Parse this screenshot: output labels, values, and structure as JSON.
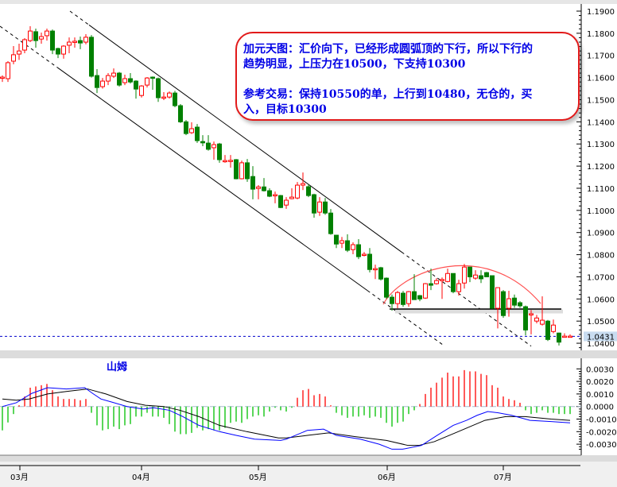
{
  "chart_data": {
    "type": "candlestick",
    "price_axis": {
      "ticks": [
        "1.1900",
        "1.1800",
        "1.1700",
        "1.1600",
        "1.1500",
        "1.1400",
        "1.1300",
        "1.1200",
        "1.1100",
        "1.1000",
        "1.0900",
        "1.0800",
        "1.0700",
        "1.0600",
        "1.0500",
        "1.0400"
      ],
      "ylim": [
        1.04,
        1.19
      ]
    },
    "current_price": "1.0431",
    "x_tick_labels": [
      "03月",
      "04月",
      "05月",
      "06月",
      "07月"
    ],
    "colors": {
      "up": "#ff0000",
      "down": "#008000",
      "macd_line": "#0000ff",
      "signal_line": "#000000",
      "annotation_text": "#0000e6",
      "annotation_border": "#e21a1a",
      "current_price_line": "#0000cc"
    },
    "candles_ohlc": [
      [
        1.16,
        1.161,
        1.158,
        1.1602
      ],
      [
        1.1595,
        1.1674,
        1.158,
        1.1667
      ],
      [
        1.1674,
        1.1742,
        1.166,
        1.1703
      ],
      [
        1.1706,
        1.1753,
        1.168,
        1.172
      ],
      [
        1.1724,
        1.1778,
        1.171,
        1.1771
      ],
      [
        1.1767,
        1.1832,
        1.176,
        1.181
      ],
      [
        1.1807,
        1.1821,
        1.1735,
        1.1767
      ],
      [
        1.1774,
        1.1803,
        1.1753,
        1.1785
      ],
      [
        1.1789,
        1.1821,
        1.1767,
        1.181
      ],
      [
        1.181,
        1.1817,
        1.1706,
        1.1724
      ],
      [
        1.1731,
        1.1735,
        1.1688,
        1.1706
      ],
      [
        1.1706,
        1.1746,
        1.1685,
        1.1742
      ],
      [
        1.1746,
        1.1781,
        1.171,
        1.176
      ],
      [
        1.1762,
        1.1781,
        1.1735,
        1.1764
      ],
      [
        1.1767,
        1.1785,
        1.1728,
        1.1756
      ],
      [
        1.176,
        1.1796,
        1.175,
        1.1782
      ],
      [
        1.1782,
        1.1792,
        1.16,
        1.1606
      ],
      [
        1.1609,
        1.1638,
        1.153,
        1.1555
      ],
      [
        1.1559,
        1.1598,
        1.155,
        1.1584
      ],
      [
        1.1584,
        1.162,
        1.1566,
        1.1609
      ],
      [
        1.1606,
        1.1641,
        1.1598,
        1.162
      ],
      [
        1.162,
        1.1625,
        1.1559,
        1.1566
      ],
      [
        1.1577,
        1.1613,
        1.1566,
        1.1595
      ],
      [
        1.1595,
        1.162,
        1.1573,
        1.158
      ],
      [
        1.1584,
        1.1588,
        1.1505,
        1.1548
      ],
      [
        1.1519,
        1.1566,
        1.151,
        1.1562
      ],
      [
        1.1566,
        1.1602,
        1.1555,
        1.1598
      ],
      [
        1.1602,
        1.1605,
        1.1545,
        1.1598
      ],
      [
        1.1595,
        1.16,
        1.149,
        1.1509
      ],
      [
        1.151,
        1.1534,
        1.1498,
        1.1512
      ],
      [
        1.1512,
        1.1537,
        1.1505,
        1.153
      ],
      [
        1.153,
        1.154,
        1.1466,
        1.1473
      ],
      [
        1.1473,
        1.148,
        1.1395,
        1.14
      ],
      [
        1.14,
        1.1408,
        1.134,
        1.1347
      ],
      [
        1.1351,
        1.1398,
        1.1345,
        1.1369
      ],
      [
        1.1376,
        1.139,
        1.1305,
        1.1315
      ],
      [
        1.1311,
        1.134,
        1.129,
        1.1305
      ],
      [
        1.1304,
        1.134,
        1.127,
        1.1276
      ],
      [
        1.1283,
        1.1311,
        1.1229,
        1.1297
      ],
      [
        1.13,
        1.1305,
        1.1215,
        1.1229
      ],
      [
        1.1222,
        1.125,
        1.1215,
        1.1225
      ],
      [
        1.1222,
        1.125,
        1.1193,
        1.1226
      ],
      [
        1.1229,
        1.1232,
        1.114,
        1.1143
      ],
      [
        1.1143,
        1.1225,
        1.114,
        1.1215
      ],
      [
        1.1215,
        1.1232,
        1.1129,
        1.1143
      ],
      [
        1.1153,
        1.12,
        1.105,
        1.1096
      ],
      [
        1.1099,
        1.1114,
        1.105,
        1.1106
      ],
      [
        1.1106,
        1.1146,
        1.1085,
        1.1089
      ],
      [
        1.1089,
        1.11,
        1.106,
        1.1064
      ],
      [
        1.1069,
        1.1085,
        1.1032,
        1.1071
      ],
      [
        1.1067,
        1.107,
        1.101,
        1.1013
      ],
      [
        1.1024,
        1.106,
        1.1007,
        1.1046
      ],
      [
        1.1053,
        1.11,
        1.105,
        1.106
      ],
      [
        1.1056,
        1.1128,
        1.105,
        1.1114
      ],
      [
        1.1114,
        1.1171,
        1.1092,
        1.1121
      ],
      [
        1.1107,
        1.1118,
        1.106,
        1.1067
      ],
      [
        1.1071,
        1.1075,
        1.0967,
        1.0988
      ],
      [
        1.0992,
        1.106,
        1.0975,
        1.1038
      ],
      [
        1.1038,
        1.1056,
        1.098,
        1.0988
      ],
      [
        1.0988,
        1.1006,
        1.089,
        1.0895
      ],
      [
        1.0888,
        1.089,
        1.083,
        1.0848
      ],
      [
        1.0852,
        1.088,
        1.083,
        1.0863
      ],
      [
        1.0863,
        1.0892,
        1.0812,
        1.082
      ],
      [
        1.0823,
        1.0856,
        1.0802,
        1.0845
      ],
      [
        1.0845,
        1.087,
        1.078,
        1.0791
      ],
      [
        1.08,
        1.0812,
        1.0792,
        1.0802
      ],
      [
        1.0802,
        1.083,
        1.072,
        1.0733
      ],
      [
        1.0735,
        1.0755,
        1.069,
        1.0737
      ],
      [
        1.0741,
        1.0745,
        1.0683,
        1.069
      ],
      [
        1.0694,
        1.0697,
        1.06,
        1.0608
      ],
      [
        1.0608,
        1.062,
        1.0547,
        1.0579
      ],
      [
        1.0579,
        1.0636,
        1.0558,
        1.0629
      ],
      [
        1.0626,
        1.0636,
        1.0565,
        1.0575
      ],
      [
        1.0579,
        1.0636,
        1.0565,
        1.0633
      ],
      [
        1.0633,
        1.0712,
        1.0597,
        1.0597
      ],
      [
        1.0615,
        1.0618,
        1.059,
        1.06
      ],
      [
        1.0604,
        1.0672,
        1.06,
        1.0669
      ],
      [
        1.0669,
        1.0737,
        1.064,
        1.0662
      ],
      [
        1.0669,
        1.0694,
        1.0665,
        1.0683
      ],
      [
        1.0686,
        1.0697,
        1.06,
        1.0688
      ],
      [
        1.0679,
        1.0737,
        1.0675,
        1.0715
      ],
      [
        1.0715,
        1.0716,
        1.0626,
        1.0633
      ],
      [
        1.0633,
        1.0687,
        1.0615,
        1.0669
      ],
      [
        1.0672,
        1.0758,
        1.0647,
        1.0744
      ],
      [
        1.0744,
        1.0745,
        1.0676,
        1.07
      ],
      [
        1.0694,
        1.073,
        1.0687,
        1.0708
      ],
      [
        1.0705,
        1.073,
        1.0672,
        1.0691
      ],
      [
        1.0719,
        1.0722,
        1.07,
        1.07
      ],
      [
        1.0705,
        1.0706,
        1.0555,
        1.0558
      ],
      [
        1.0558,
        1.0652,
        1.0467,
        1.0651
      ],
      [
        1.0633,
        1.064,
        1.0515,
        1.0525
      ],
      [
        1.0558,
        1.0637,
        1.052,
        1.0601
      ],
      [
        1.0604,
        1.062,
        1.056,
        1.0572
      ],
      [
        1.0583,
        1.059,
        1.056,
        1.0569
      ],
      [
        1.0565,
        1.057,
        1.0435,
        1.046
      ],
      [
        1.053,
        1.055,
        1.044,
        1.0533
      ],
      [
        1.05,
        1.0528,
        1.049,
        1.0514
      ],
      [
        1.0486,
        1.0612,
        1.048,
        1.0504
      ],
      [
        1.05,
        1.0505,
        1.041,
        1.0417
      ],
      [
        1.0453,
        1.0507,
        1.0445,
        1.0482
      ],
      [
        1.0446,
        1.0448,
        1.039,
        1.0405
      ],
      [
        1.043,
        1.0445,
        1.0428,
        1.0432
      ],
      [
        1.0431,
        1.044,
        1.0428,
        1.0432
      ]
    ],
    "macd": {
      "title": "山姆",
      "ticks": [
        "0.0030",
        "0.0020",
        "0.0010",
        "0.0000",
        "-0.0010",
        "-0.0020",
        "-0.0030"
      ],
      "ylim": [
        -0.0035,
        0.0035
      ],
      "histogram": [
        -0.0019,
        -0.00127,
        -0.0006,
        0.0001,
        0.0008,
        0.0015,
        0.0016,
        0.0017,
        0.0018,
        0.0013,
        0.0008,
        0.0006,
        0.0006,
        0.0006,
        0.0005,
        0.0006,
        -0.0005,
        -0.0015,
        -0.0019,
        -0.0018,
        -0.0016,
        -0.0018,
        -0.0015,
        -0.0014,
        -0.0008,
        -0.0008,
        -0.0005,
        -0.0008,
        -0.0008,
        -0.0009,
        -0.0014,
        -0.002,
        -0.0022,
        -0.0022,
        -0.0021,
        -0.0017,
        -0.0019,
        -0.0018,
        -0.0019,
        -0.0019,
        -0.0017,
        -0.0013,
        -0.0012,
        -0.0013,
        -0.001,
        -0.0008,
        -0.0007,
        -0.0008,
        -0.0004,
        -0.0001,
        -0.0003,
        -0.0004,
        -0.0001,
        0.0007,
        0.0013,
        0.0014,
        0.0009,
        0.001,
        0.0008,
        0.0001,
        -0.0005,
        -0.0007,
        -0.0009,
        -0.0008,
        -0.0008,
        -0.0007,
        -0.0009,
        -0.0008,
        -0.0009,
        -0.0013,
        -0.0016,
        -0.0013,
        -0.0012,
        -0.0006,
        -0.0003,
        0.0002,
        0.001,
        0.0015,
        0.0019,
        0.0023,
        0.0027,
        0.0024,
        0.0024,
        0.0029,
        0.0028,
        0.0028,
        0.0026,
        0.0025,
        0.0017,
        0.0015,
        0.0008,
        0.0006,
        0.0005,
        0.0003,
        -0.0003,
        -0.0006,
        -0.0005,
        -0.0003,
        -0.0005,
        -0.0005,
        -0.0006,
        -0.0006,
        -0.0006
      ],
      "macd_line": [
        [
          0,
          0
        ],
        [
          2.5,
          0.0003
        ],
        [
          5.3,
          0.00105
        ],
        [
          8.1,
          0.0015
        ],
        [
          11.5,
          0.0014
        ],
        [
          14.8,
          0.0015
        ],
        [
          16.2,
          0.00105
        ],
        [
          17.7,
          0.0006
        ],
        [
          19.6,
          0.00036
        ],
        [
          22.4,
          0
        ],
        [
          25.3,
          -0.0002
        ],
        [
          27.2,
          -0.0001
        ],
        [
          30,
          -0.0003
        ],
        [
          32.4,
          -0.0008
        ],
        [
          35.3,
          -0.0015
        ],
        [
          39,
          -0.002
        ],
        [
          42,
          -0.0023
        ],
        [
          45.3,
          -0.0026
        ],
        [
          50,
          -0.0027
        ],
        [
          51,
          -0.0026
        ],
        [
          54.8,
          -0.0019
        ],
        [
          57.7,
          -0.0018
        ],
        [
          60,
          -0.0023
        ],
        [
          64.3,
          -0.0026
        ],
        [
          67.7,
          -0.003
        ],
        [
          70,
          -0.0034
        ],
        [
          71.9,
          -0.0034
        ],
        [
          75.3,
          -0.0031
        ],
        [
          78.1,
          -0.0023
        ],
        [
          81,
          -0.0015
        ],
        [
          83.4,
          -0.0011
        ],
        [
          85.3,
          -0.0007
        ],
        [
          87.2,
          -0.0004
        ],
        [
          89.1,
          -0.0005
        ],
        [
          91.5,
          -0.0007
        ],
        [
          94.8,
          -0.0011
        ],
        [
          98.6,
          -0.0012
        ],
        [
          102,
          -0.0013
        ]
      ],
      "signal_line": [
        [
          0,
          0.0006
        ],
        [
          2.5,
          0.0005
        ],
        [
          4.8,
          0.0006
        ],
        [
          8.1,
          0.001
        ],
        [
          11.5,
          0.0012
        ],
        [
          15.3,
          0.0014
        ],
        [
          18.6,
          0.001
        ],
        [
          22.4,
          0.0004
        ],
        [
          25.7,
          0.0001
        ],
        [
          29,
          0
        ],
        [
          31.9,
          -0.0003
        ],
        [
          35.3,
          -0.0008
        ],
        [
          39,
          -0.0015
        ],
        [
          43.9,
          -0.002
        ],
        [
          49.6,
          -0.0025
        ],
        [
          51,
          -0.0025
        ],
        [
          54.8,
          -0.0023
        ],
        [
          58.6,
          -0.0021
        ],
        [
          63.4,
          -0.0024
        ],
        [
          69,
          -0.0027
        ],
        [
          72.9,
          -0.0031
        ],
        [
          74.8,
          -0.0031
        ],
        [
          77.6,
          -0.0028
        ],
        [
          81.9,
          -0.002
        ],
        [
          86.7,
          -0.0011
        ],
        [
          90.5,
          -0.0008
        ],
        [
          93.9,
          -0.0008
        ],
        [
          98.6,
          -0.001
        ],
        [
          102,
          -0.0011
        ]
      ]
    }
  },
  "annotation": {
    "line1": "加元天图：汇价向下，已经形成圆弧顶的下行，所以下行的",
    "line2": "趋势明显，上压力在10500，下支持10300",
    "line3": "参考交易：保持10550的单，上行到10480，无仓的，买",
    "line4": "入，目标10300"
  }
}
